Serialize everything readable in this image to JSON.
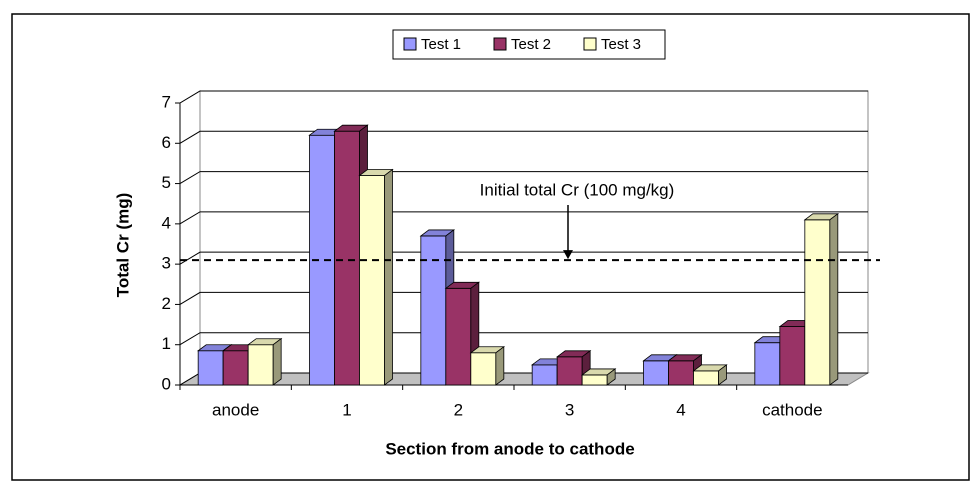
{
  "chart_data": {
    "type": "bar3d",
    "categories": [
      "anode",
      "1",
      "2",
      "3",
      "4",
      "cathode"
    ],
    "series": [
      {
        "name": "Test 1",
        "color": "#9999ff",
        "values": [
          0.85,
          6.2,
          3.7,
          0.5,
          0.6,
          1.05
        ]
      },
      {
        "name": "Test 2",
        "color": "#993366",
        "values": [
          0.85,
          6.3,
          2.4,
          0.7,
          0.6,
          1.45
        ]
      },
      {
        "name": "Test 3",
        "color": "#ffffcc",
        "values": [
          1.0,
          5.2,
          0.8,
          0.25,
          0.35,
          4.1
        ]
      }
    ],
    "ylim": [
      0,
      7
    ],
    "yticks": [
      0,
      1,
      2,
      3,
      4,
      5,
      6,
      7
    ],
    "grid": true,
    "y_label": "Total Cr (mg)",
    "x_label": "Section from anode to cathode",
    "legend": "top",
    "annotation": {
      "text": "Initial total Cr (100 mg/kg)",
      "value": 3.1
    }
  }
}
